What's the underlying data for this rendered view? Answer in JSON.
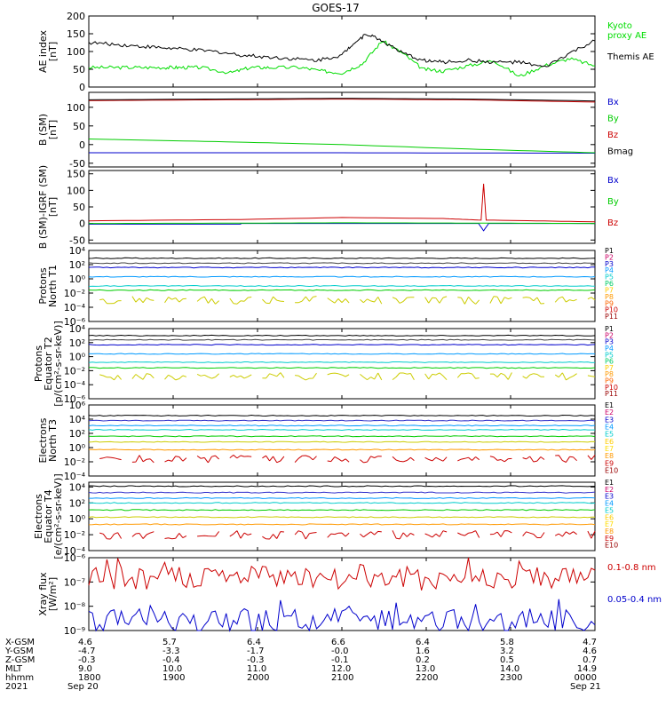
{
  "title": "GOES-17",
  "chart_data": [
    {
      "type": "line",
      "panel": "ae_index",
      "ylabel": [
        "AE index",
        "[nT]"
      ],
      "ylim": [
        0,
        200
      ],
      "yticks": [
        "0",
        "50",
        "100",
        "150",
        "200"
      ],
      "ytick_values": [
        0,
        50,
        100,
        150,
        200
      ],
      "log": false,
      "series": [
        {
          "name": "Kyoto proxy AE",
          "label_lines": [
            "Kyoto",
            "proxy AE"
          ],
          "color": "#00dd00",
          "x": [
            0,
            0.05,
            0.1,
            0.15,
            0.18,
            0.22,
            0.28,
            0.32,
            0.36,
            0.42,
            0.46,
            0.5,
            0.54,
            0.58,
            0.62,
            0.66,
            0.7,
            0.75,
            0.8,
            0.85,
            0.9,
            0.95,
            1.0
          ],
          "y": [
            55,
            55,
            55,
            55,
            55,
            55,
            40,
            55,
            55,
            55,
            45,
            40,
            65,
            130,
            95,
            50,
            45,
            60,
            75,
            30,
            60,
            80,
            60
          ]
        },
        {
          "name": "Themis AE",
          "label_lines": [
            "Themis AE"
          ],
          "color": "#000000",
          "x": [
            0,
            0.05,
            0.1,
            0.15,
            0.2,
            0.25,
            0.3,
            0.35,
            0.4,
            0.45,
            0.5,
            0.52,
            0.55,
            0.58,
            0.62,
            0.66,
            0.7,
            0.75,
            0.8,
            0.85,
            0.9,
            0.95,
            1.0
          ],
          "y": [
            125,
            120,
            115,
            110,
            105,
            100,
            90,
            85,
            80,
            75,
            90,
            120,
            150,
            130,
            95,
            75,
            70,
            75,
            70,
            70,
            55,
            95,
            130
          ]
        }
      ]
    },
    {
      "type": "line",
      "panel": "b_sm",
      "ylabel": [
        "B (SM)",
        "[nT]"
      ],
      "ylim": [
        -60,
        140
      ],
      "yticks": [
        "-50",
        "0",
        "50",
        "100",
        "150"
      ],
      "ytick_values": [
        -50,
        0,
        50,
        100,
        150
      ],
      "log": false,
      "series": [
        {
          "name": "Bx",
          "color": "#0000cc",
          "x": [
            0,
            0.5,
            1
          ],
          "y": [
            -22,
            -22,
            -23
          ]
        },
        {
          "name": "By",
          "color": "#00cc00",
          "x": [
            0,
            0.25,
            0.5,
            0.75,
            1
          ],
          "y": [
            15,
            8,
            0,
            -12,
            -22
          ]
        },
        {
          "name": "Bz",
          "color": "#cc0000",
          "x": [
            0,
            0.25,
            0.5,
            0.75,
            1
          ],
          "y": [
            118,
            120,
            122,
            120,
            114
          ]
        },
        {
          "name": "Bmag",
          "color": "#000000",
          "x": [
            0,
            0.25,
            0.5,
            0.75,
            1
          ],
          "y": [
            120,
            122,
            124,
            122,
            117
          ]
        }
      ]
    },
    {
      "type": "line",
      "panel": "b_minus_igrf",
      "ylabel": [
        "B (SM)-IGRF (SM)",
        "[nT]"
      ],
      "ylim": [
        -60,
        160
      ],
      "yticks": [
        "-50",
        "0",
        "50",
        "100",
        "150"
      ],
      "ytick_values": [
        -50,
        0,
        50,
        100,
        150
      ],
      "log": false,
      "series": [
        {
          "name": "Bx",
          "color": "#0000cc",
          "x": [
            0,
            0.3,
            0.3,
            0.6,
            0.77,
            0.78,
            0.79,
            0.8,
            1
          ],
          "y": [
            -2,
            -2,
            0,
            0,
            0,
            -22,
            0,
            0,
            0
          ]
        },
        {
          "name": "By",
          "color": "#00cc00",
          "x": [
            0,
            0.3,
            0.5,
            0.8,
            1
          ],
          "y": [
            0,
            1,
            2,
            1,
            0
          ]
        },
        {
          "name": "Bz",
          "color": "#cc0000",
          "x": [
            0,
            0.3,
            0.5,
            0.7,
            0.775,
            0.78,
            0.785,
            0.8,
            1
          ],
          "y": [
            8,
            12,
            18,
            15,
            10,
            120,
            10,
            10,
            5
          ]
        }
      ]
    },
    {
      "type": "line",
      "panel": "protons_north_t1",
      "ylabel": [
        "Protons",
        "North T1"
      ],
      "ylim": [
        -6,
        4
      ],
      "yticks": [
        "10⁻⁶",
        "10⁻⁴",
        "10⁻²",
        "10⁰",
        "10²",
        "10⁴"
      ],
      "ytick_values": [
        -6,
        -4,
        -2,
        0,
        2,
        4
      ],
      "log": true,
      "legend": [
        "P1",
        "P2",
        "P3",
        "P4",
        "P5",
        "P6",
        "P7",
        "P8",
        "P9",
        "P10",
        "P11"
      ],
      "legend_colors": [
        "#000000",
        "#cc0066",
        "#0000cc",
        "#0099ff",
        "#00cccc",
        "#00cc66",
        "#ffcc00",
        "#ff9900",
        "#ff6600",
        "#cc0000",
        "#990000"
      ],
      "series": [
        {
          "name": "P1",
          "color": "#000000",
          "level": 2.9
        },
        {
          "name": "P2",
          "color": "#444444",
          "level": 2.2
        },
        {
          "name": "P3",
          "color": "#0000cc",
          "level": 1.6
        },
        {
          "name": "P4",
          "color": "#0099ff",
          "level": 0.3
        },
        {
          "name": "P5",
          "color": "#00cccc",
          "level": -1.0
        },
        {
          "name": "P6",
          "color": "#00cc00",
          "level": -1.6
        },
        {
          "name": "P7",
          "color": "#cccc00",
          "level": -3.0,
          "noisy": true
        }
      ]
    },
    {
      "type": "line",
      "panel": "protons_equator_t2",
      "ylabel": [
        "Protons",
        "Equator T2",
        "[p/(cm²-s-sr-keV)]"
      ],
      "ylim": [
        -6,
        4
      ],
      "yticks": [
        "10⁻⁶",
        "10⁻⁴",
        "10⁻²",
        "10⁰",
        "10²",
        "10⁴"
      ],
      "ytick_values": [
        -6,
        -4,
        -2,
        0,
        2,
        4
      ],
      "log": true,
      "legend": [
        "P1",
        "P2",
        "P3",
        "P4",
        "P5",
        "P6",
        "P7",
        "P8",
        "P9",
        "P10",
        "P11"
      ],
      "legend_colors": [
        "#000000",
        "#cc0066",
        "#0000cc",
        "#0099ff",
        "#00cccc",
        "#00cc66",
        "#ffcc00",
        "#ff9900",
        "#ff6600",
        "#cc0000",
        "#990000"
      ],
      "series": [
        {
          "name": "P1",
          "color": "#000000",
          "level": 3.0
        },
        {
          "name": "P2",
          "color": "#444444",
          "level": 2.4
        },
        {
          "name": "P3",
          "color": "#0000cc",
          "level": 1.7
        },
        {
          "name": "P4",
          "color": "#0099ff",
          "level": 0.4
        },
        {
          "name": "P5",
          "color": "#00cccc",
          "level": -0.8
        },
        {
          "name": "P6",
          "color": "#00cc00",
          "level": -1.6
        },
        {
          "name": "P7",
          "color": "#cccc00",
          "level": -2.8,
          "noisy": true
        }
      ]
    },
    {
      "type": "line",
      "panel": "electrons_north_t3",
      "ylabel": [
        "Electrons",
        "North T3"
      ],
      "ylim": [
        -4,
        6
      ],
      "yticks": [
        "10⁻⁴",
        "10⁻²",
        "10⁰",
        "10²",
        "10⁴",
        "10⁶"
      ],
      "ytick_values": [
        -4,
        -2,
        0,
        2,
        4,
        6
      ],
      "log": true,
      "legend": [
        "E1",
        "E2",
        "E3",
        "E4",
        "E5",
        "E6",
        "E7",
        "E8",
        "E9",
        "E10"
      ],
      "legend_colors": [
        "#000000",
        "#cc0066",
        "#0000cc",
        "#0099ff",
        "#00cccc",
        "#ffcc00",
        "#ffdd00",
        "#ff9900",
        "#cc0000",
        "#990000"
      ],
      "series": [
        {
          "name": "E1",
          "color": "#000000",
          "level": 4.5
        },
        {
          "name": "E2",
          "color": "#3333cc",
          "level": 3.8
        },
        {
          "name": "E3",
          "color": "#0099ff",
          "level": 3.1
        },
        {
          "name": "E4",
          "color": "#00cccc",
          "level": 2.5
        },
        {
          "name": "E5",
          "color": "#00cc00",
          "level": 1.6
        },
        {
          "name": "E6",
          "color": "#cccc00",
          "level": 0.8
        },
        {
          "name": "E7",
          "color": "#ff9900",
          "level": -0.3
        },
        {
          "name": "E9",
          "color": "#cc0000",
          "level": -1.6,
          "noisy": true
        }
      ]
    },
    {
      "type": "line",
      "panel": "electrons_equator_t4",
      "ylabel": [
        "Electrons",
        "Equator T4",
        "[e/(cm²-s-sr-keV)]"
      ],
      "ylim": [
        -4,
        4.6
      ],
      "yticks": [
        "10⁻⁴",
        "10⁻²",
        "10⁰",
        "10²",
        "10⁴"
      ],
      "ytick_values": [
        -4,
        -2,
        0,
        2,
        4
      ],
      "log": true,
      "legend": [
        "E1",
        "E2",
        "E3",
        "E4",
        "E5",
        "E6",
        "E7",
        "E8",
        "E9",
        "E10"
      ],
      "legend_colors": [
        "#000000",
        "#cc0066",
        "#0000cc",
        "#0099ff",
        "#00cccc",
        "#ffcc00",
        "#ffdd00",
        "#ff9900",
        "#cc0000",
        "#990000"
      ],
      "series": [
        {
          "name": "E1",
          "color": "#000000",
          "level": 4.1
        },
        {
          "name": "E2",
          "color": "#3333cc",
          "level": 3.3
        },
        {
          "name": "E3",
          "color": "#0099ff",
          "level": 2.6
        },
        {
          "name": "E4",
          "color": "#00cccc",
          "level": 2.0
        },
        {
          "name": "E5",
          "color": "#00cc00",
          "level": 1.1
        },
        {
          "name": "E6",
          "color": "#cccc00",
          "level": 0.2
        },
        {
          "name": "E7",
          "color": "#ff9900",
          "level": -0.7
        },
        {
          "name": "E9",
          "color": "#cc0000",
          "level": -2.0,
          "noisy": true
        }
      ]
    },
    {
      "type": "line",
      "panel": "xray_flux",
      "ylabel": [
        "Xray flux",
        "[W/m²]"
      ],
      "ylim": [
        -9,
        -6
      ],
      "yticks": [
        "10⁻⁹",
        "10⁻⁸",
        "10⁻⁷",
        "10⁻⁶"
      ],
      "ytick_values": [
        -9,
        -8,
        -7,
        -6
      ],
      "log": true,
      "series": [
        {
          "name": "0.1-0.8 nm",
          "color": "#cc0000",
          "level": -6.85,
          "noisy": true
        },
        {
          "name": "0.05-0.4 nm",
          "color": "#0000cc",
          "level": -8.6,
          "noisy": true
        }
      ]
    }
  ],
  "ephemeris": {
    "rows": [
      {
        "label": "X-GSM",
        "values": [
          "4.6",
          "5.7",
          "6.4",
          "6.6",
          "6.4",
          "5.8",
          "4.7"
        ]
      },
      {
        "label": "Y-GSM",
        "values": [
          "-4.7",
          "-3.3",
          "-1.7",
          "-0.0",
          "1.6",
          "3.2",
          "4.6"
        ]
      },
      {
        "label": "Z-GSM",
        "values": [
          "-0.3",
          "-0.4",
          "-0.3",
          "-0.1",
          "0.2",
          "0.5",
          "0.7"
        ]
      },
      {
        "label": "MLT",
        "values": [
          "9.0",
          "10.0",
          "11.0",
          "12.0",
          "13.0",
          "14.0",
          "14.9"
        ]
      },
      {
        "label": "hhmm",
        "values": [
          "1800",
          "1900",
          "2000",
          "2100",
          "2200",
          "2300",
          "0000"
        ]
      },
      {
        "label": "2021",
        "values": [
          "Sep 20",
          "",
          "",
          "",
          "",
          "",
          "Sep 21"
        ]
      }
    ]
  }
}
